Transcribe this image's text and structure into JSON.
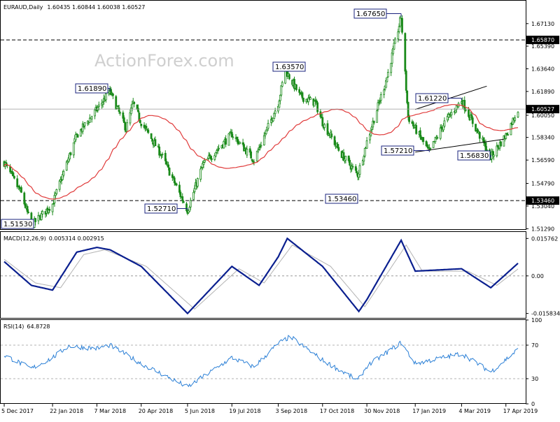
{
  "header": {
    "symbol": "EURAUD,Daily",
    "ohlc": "1.60435 1.60844 1.60038 1.60527",
    "macd_label": "MACD(12,26,9)",
    "macd_values": "0.005314 0.002915",
    "rsi_label": "RSI(14)",
    "rsi_value": "64.8728"
  },
  "watermark": "ActionForex.com",
  "colors": {
    "candle": "#1a8a1a",
    "ma": "#e03a3a",
    "macd_main": "#0a1f8f",
    "macd_signal": "#b3b3b3",
    "rsi": "#2a7fd6",
    "annotation_border": "#1a237e",
    "support": "#000000"
  },
  "chart_data": [
    {
      "type": "candlestick",
      "title": "EURAUD,Daily",
      "ylim": [
        1.512,
        1.689
      ],
      "y_ticks": [
        "1.67130",
        "1.65390",
        "1.63640",
        "1.61890",
        "1.60050",
        "1.58340",
        "1.56590",
        "1.54790",
        "1.53040",
        "1.51290"
      ],
      "x_ticks": [
        "5 Dec 2017",
        "22 Jan 2018",
        "7 Mar 2018",
        "20 Apr 2018",
        "5 Jun 2018",
        "19 Jul 2018",
        "3 Sep 2018",
        "17 Oct 2018",
        "30 Nov 2018",
        "17 Jan 2019",
        "4 Mar 2019",
        "17 Apr 2019"
      ],
      "anchors": [
        {
          "date": "5 Dec 2017",
          "close": 1.564
        },
        {
          "date": "22 Dec 2017",
          "close": 1.54
        },
        {
          "date": "1 Jan 2018",
          "close": 1.5153
        },
        {
          "date": "22 Jan 2018",
          "close": 1.532
        },
        {
          "date": "15 Feb 2018",
          "close": 1.585
        },
        {
          "date": "7 Mar 2018",
          "close": 1.605
        },
        {
          "date": "20 Mar 2018",
          "close": 1.6189
        },
        {
          "date": "5 Apr 2018",
          "close": 1.59
        },
        {
          "date": "12 Apr 2018",
          "close": 1.61
        },
        {
          "date": "20 Apr 2018",
          "close": 1.595
        },
        {
          "date": "10 May 2018",
          "close": 1.57
        },
        {
          "date": "5 Jun 2018",
          "close": 1.5271
        },
        {
          "date": "20 Jun 2018",
          "close": 1.562
        },
        {
          "date": "19 Jul 2018",
          "close": 1.586
        },
        {
          "date": "10 Aug 2018",
          "close": 1.566
        },
        {
          "date": "3 Sep 2018",
          "close": 1.61
        },
        {
          "date": "10 Sep 2018",
          "close": 1.6357
        },
        {
          "date": "25 Sep 2018",
          "close": 1.615
        },
        {
          "date": "10 Oct 2018",
          "close": 1.61
        },
        {
          "date": "17 Oct 2018",
          "close": 1.595
        },
        {
          "date": "5 Nov 2018",
          "close": 1.57
        },
        {
          "date": "21 Nov 2018",
          "close": 1.5546
        },
        {
          "date": "30 Nov 2018",
          "close": 1.58
        },
        {
          "date": "20 Dec 2018",
          "close": 1.63
        },
        {
          "date": "3 Jan 2019",
          "close": 1.6765
        },
        {
          "date": "10 Jan 2019",
          "close": 1.599
        },
        {
          "date": "17 Jan 2019",
          "close": 1.59
        },
        {
          "date": "31 Jan 2019",
          "close": 1.5721
        },
        {
          "date": "15 Feb 2019",
          "close": 1.595
        },
        {
          "date": "4 Mar 2019",
          "close": 1.6122
        },
        {
          "date": "15 Mar 2019",
          "close": 1.595
        },
        {
          "date": "2 Apr 2019",
          "close": 1.5683
        },
        {
          "date": "17 Apr 2019",
          "close": 1.585
        },
        {
          "date": "29 Apr 2019",
          "close": 1.6053
        }
      ],
      "annotations": [
        "1.67650",
        "1.63570",
        "1.61890",
        "1.61220",
        "1.57210",
        "1.56830",
        "1.53460",
        "1.52710",
        "1.51530"
      ],
      "support_levels": [
        {
          "value": 1.6587,
          "label": "1.65870"
        },
        {
          "value": 1.5346,
          "label": "1.53460"
        }
      ],
      "last_price": {
        "value": 1.60527,
        "label": "1.60527"
      },
      "moving_average": true,
      "trendlines": [
        {
          "from": {
            "date": "17 Jan 2019",
            "value": 1.605
          },
          "to": {
            "date": "29 Mar 2019",
            "value": 1.623
          }
        },
        {
          "from": {
            "date": "17 Jan 2019",
            "value": 1.5721
          },
          "to": {
            "date": "15 Apr 2019",
            "value": 1.582
          }
        }
      ]
    },
    {
      "type": "line",
      "title": "MACD(12,26,9)",
      "ylim": [
        -0.018,
        0.0185
      ],
      "y_ticks": [
        "0.015762",
        "0.00",
        "-0.015834"
      ],
      "series": [
        {
          "name": "MACD",
          "anchors": [
            {
              "date": "5 Dec 2017",
              "value": 0.006
            },
            {
              "date": "1 Jan 2018",
              "value": -0.004
            },
            {
              "date": "22 Jan 2018",
              "value": -0.006
            },
            {
              "date": "15 Feb 2018",
              "value": 0.01
            },
            {
              "date": "7 Mar 2018",
              "value": 0.012
            },
            {
              "date": "20 Mar 2018",
              "value": 0.011
            },
            {
              "date": "20 Apr 2018",
              "value": 0.004
            },
            {
              "date": "5 Jun 2018",
              "value": -0.015834
            },
            {
              "date": "19 Jul 2018",
              "value": 0.004
            },
            {
              "date": "15 Aug 2018",
              "value": -0.004
            },
            {
              "date": "3 Sep 2018",
              "value": 0.008
            },
            {
              "date": "12 Sep 2018",
              "value": 0.015762
            },
            {
              "date": "17 Oct 2018",
              "value": 0.004
            },
            {
              "date": "22 Nov 2018",
              "value": -0.015
            },
            {
              "date": "30 Nov 2018",
              "value": -0.01
            },
            {
              "date": "3 Jan 2019",
              "value": 0.015
            },
            {
              "date": "17 Jan 2019",
              "value": 0.002
            },
            {
              "date": "4 Mar 2019",
              "value": 0.003
            },
            {
              "date": "2 Apr 2019",
              "value": -0.005
            },
            {
              "date": "29 Apr 2019",
              "value": 0.005314
            }
          ]
        },
        {
          "name": "Signal",
          "anchors": [
            {
              "date": "5 Dec 2017",
              "value": 0.007
            },
            {
              "date": "5 Jan 2018",
              "value": -0.003
            },
            {
              "date": "30 Jan 2018",
              "value": -0.005
            },
            {
              "date": "22 Feb 2018",
              "value": 0.009
            },
            {
              "date": "15 Mar 2018",
              "value": 0.011
            },
            {
              "date": "25 Apr 2018",
              "value": 0.004
            },
            {
              "date": "12 Jun 2018",
              "value": -0.014
            },
            {
              "date": "26 Jul 2018",
              "value": 0.003
            },
            {
              "date": "20 Aug 2018",
              "value": -0.003
            },
            {
              "date": "17 Sep 2018",
              "value": 0.013
            },
            {
              "date": "25 Oct 2018",
              "value": 0.004
            },
            {
              "date": "28 Nov 2018",
              "value": -0.013
            },
            {
              "date": "8 Jan 2019",
              "value": 0.013
            },
            {
              "date": "24 Jan 2019",
              "value": 0.002
            },
            {
              "date": "10 Mar 2019",
              "value": 0.002
            },
            {
              "date": "8 Apr 2019",
              "value": -0.004
            },
            {
              "date": "29 Apr 2019",
              "value": 0.002915
            }
          ]
        }
      ]
    },
    {
      "type": "line",
      "title": "RSI(14)",
      "ylim": [
        0,
        100
      ],
      "y_ticks": [
        "100",
        "70",
        "30",
        "0"
      ],
      "levels": [
        70,
        30
      ],
      "series": [
        {
          "name": "RSI",
          "anchors": [
            {
              "date": "5 Dec 2017",
              "value": 58
            },
            {
              "date": "1 Jan 2018",
              "value": 42
            },
            {
              "date": "22 Jan 2018",
              "value": 55
            },
            {
              "date": "7 Feb 2018",
              "value": 69
            },
            {
              "date": "7 Mar 2018",
              "value": 66
            },
            {
              "date": "20 Mar 2018",
              "value": 70
            },
            {
              "date": "20 Apr 2018",
              "value": 48
            },
            {
              "date": "5 Jun 2018",
              "value": 20
            },
            {
              "date": "19 Jul 2018",
              "value": 55
            },
            {
              "date": "10 Aug 2018",
              "value": 44
            },
            {
              "date": "3 Sep 2018",
              "value": 72
            },
            {
              "date": "15 Sep 2018",
              "value": 80
            },
            {
              "date": "17 Oct 2018",
              "value": 52
            },
            {
              "date": "21 Nov 2018",
              "value": 28
            },
            {
              "date": "30 Nov 2018",
              "value": 45
            },
            {
              "date": "3 Jan 2019",
              "value": 73
            },
            {
              "date": "17 Jan 2019",
              "value": 48
            },
            {
              "date": "4 Mar 2019",
              "value": 60
            },
            {
              "date": "2 Apr 2019",
              "value": 38
            },
            {
              "date": "29 Apr 2019",
              "value": 64.8728
            }
          ]
        }
      ]
    }
  ]
}
